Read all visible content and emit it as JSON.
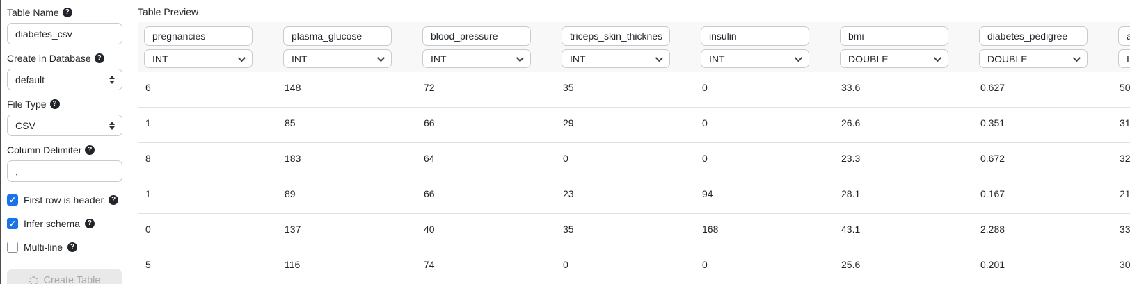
{
  "sidebar": {
    "table_name": {
      "label": "Table Name",
      "value": "diabetes_csv"
    },
    "database": {
      "label": "Create in Database",
      "value": "default"
    },
    "file_type": {
      "label": "File Type",
      "value": "CSV"
    },
    "delimiter": {
      "label": "Column Delimiter",
      "value": ","
    },
    "checkboxes": [
      {
        "label": "First row is header",
        "checked": true
      },
      {
        "label": "Infer schema",
        "checked": true
      },
      {
        "label": "Multi-line",
        "checked": false
      }
    ],
    "create_button": {
      "label": "Create Table",
      "disabled": true
    }
  },
  "preview": {
    "title": "Table Preview",
    "columns": [
      {
        "name": "pregnancies",
        "type": "INT"
      },
      {
        "name": "plasma_glucose",
        "type": "INT"
      },
      {
        "name": "blood_pressure",
        "type": "INT"
      },
      {
        "name": "triceps_skin_thickness",
        "type": "INT"
      },
      {
        "name": "insulin",
        "type": "INT"
      },
      {
        "name": "bmi",
        "type": "DOUBLE"
      },
      {
        "name": "diabetes_pedigree",
        "type": "DOUBLE"
      },
      {
        "name": "age",
        "type": "INT"
      }
    ],
    "rows": [
      [
        "6",
        "148",
        "72",
        "35",
        "0",
        "33.6",
        "0.627",
        "50"
      ],
      [
        "1",
        "85",
        "66",
        "29",
        "0",
        "26.6",
        "0.351",
        "31"
      ],
      [
        "8",
        "183",
        "64",
        "0",
        "0",
        "23.3",
        "0.672",
        "32"
      ],
      [
        "1",
        "89",
        "66",
        "23",
        "94",
        "28.1",
        "0.167",
        "21"
      ],
      [
        "0",
        "137",
        "40",
        "35",
        "168",
        "43.1",
        "2.288",
        "33"
      ],
      [
        "5",
        "116",
        "74",
        "0",
        "0",
        "25.6",
        "0.201",
        "30"
      ]
    ]
  },
  "icons": {
    "help": "?",
    "check": "✓"
  },
  "colors": {
    "checkbox_blue": "#1a73e8",
    "border_gray": "#c8cbce",
    "row_line": "#e2e2e2",
    "disabled_btn_bg": "#e9e9e9",
    "disabled_btn_text": "#a9a9a9",
    "edge_strip": "#4e4e4e"
  }
}
